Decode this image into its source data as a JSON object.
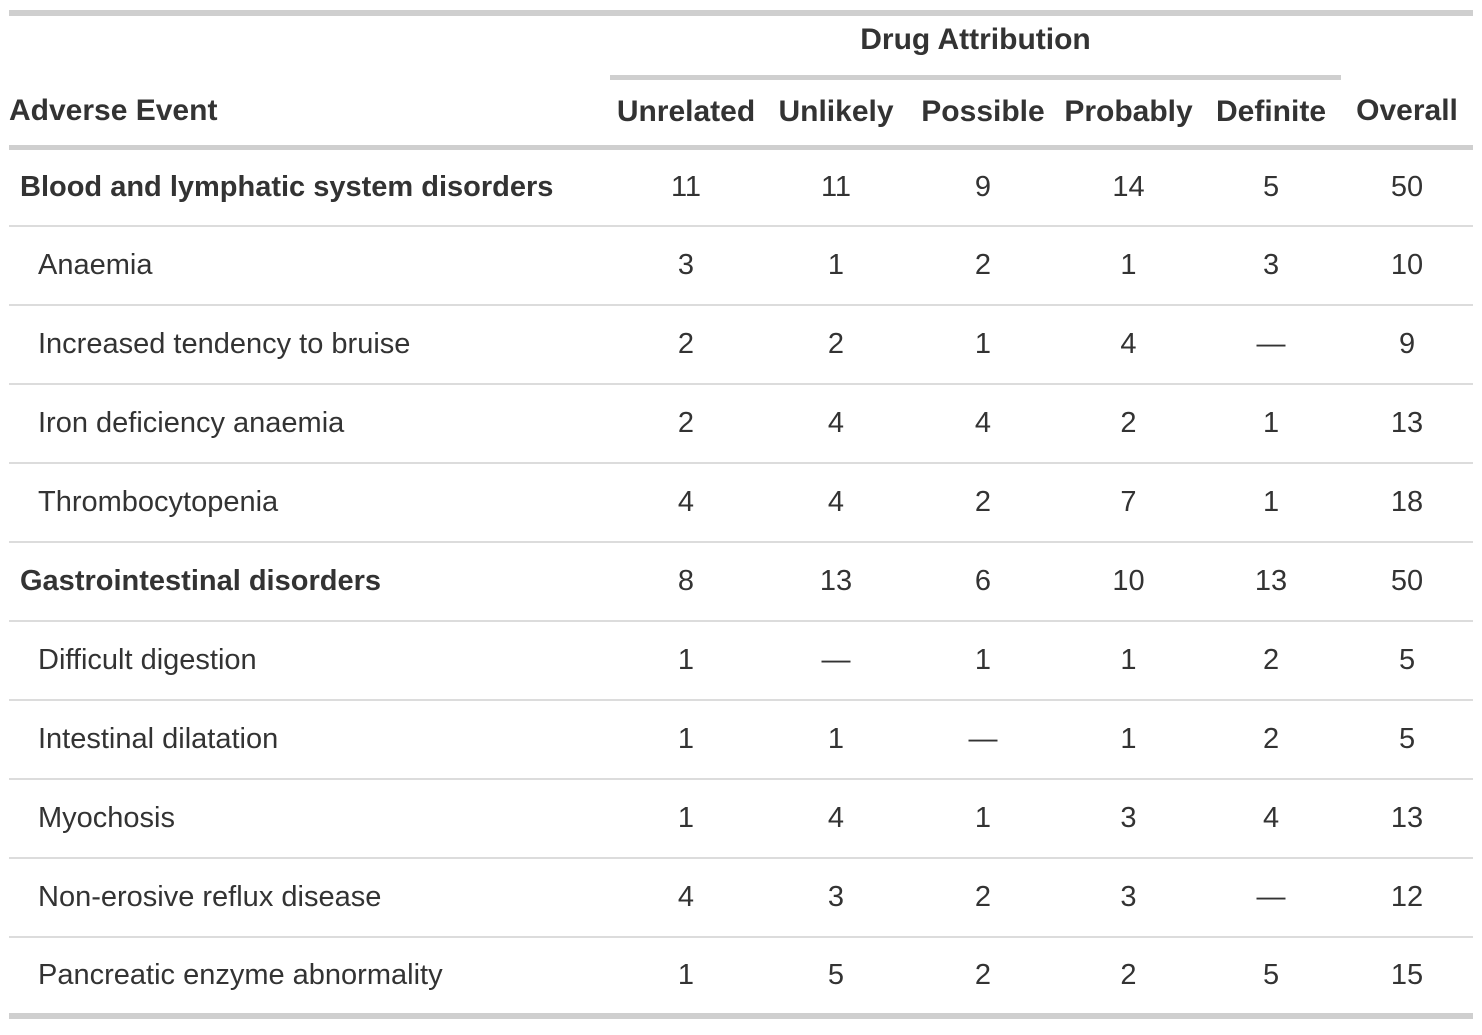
{
  "chart_data": {
    "type": "table",
    "title": "",
    "spanner": {
      "label": "Drug Attribution",
      "spans_columns": [
        "Unrelated",
        "Unlikely",
        "Possible",
        "Probably",
        "Definite"
      ]
    },
    "columns": [
      "Adverse Event",
      "Unrelated",
      "Unlikely",
      "Possible",
      "Probably",
      "Definite",
      "Overall"
    ],
    "missing_marker": "—",
    "rows": [
      {
        "label": "Blood and lymphatic system disorders",
        "level": "group",
        "values": [
          11,
          11,
          9,
          14,
          5,
          50
        ]
      },
      {
        "label": "Anaemia",
        "level": "sub",
        "values": [
          3,
          1,
          2,
          1,
          3,
          10
        ]
      },
      {
        "label": "Increased tendency to bruise",
        "level": "sub",
        "values": [
          2,
          2,
          1,
          4,
          "—",
          9
        ]
      },
      {
        "label": "Iron deficiency anaemia",
        "level": "sub",
        "values": [
          2,
          4,
          4,
          2,
          1,
          13
        ]
      },
      {
        "label": "Thrombocytopenia",
        "level": "sub",
        "values": [
          4,
          4,
          2,
          7,
          1,
          18
        ]
      },
      {
        "label": "Gastrointestinal disorders",
        "level": "group",
        "values": [
          8,
          13,
          6,
          10,
          13,
          50
        ]
      },
      {
        "label": "Difficult digestion",
        "level": "sub",
        "values": [
          1,
          "—",
          1,
          1,
          2,
          5
        ]
      },
      {
        "label": "Intestinal dilatation",
        "level": "sub",
        "values": [
          1,
          1,
          "—",
          1,
          2,
          5
        ]
      },
      {
        "label": "Myochosis",
        "level": "sub",
        "values": [
          1,
          4,
          1,
          3,
          4,
          13
        ]
      },
      {
        "label": "Non-erosive reflux disease",
        "level": "sub",
        "values": [
          4,
          3,
          2,
          3,
          "—",
          12
        ]
      },
      {
        "label": "Pancreatic enzyme abnormality",
        "level": "sub",
        "values": [
          1,
          5,
          2,
          2,
          5,
          15
        ]
      }
    ],
    "layout_hints": {
      "column_alignment": [
        "left",
        "center",
        "center",
        "center",
        "center",
        "center",
        "center"
      ],
      "grid": "horizontal-rules-only",
      "colors": {
        "text": "#333333",
        "heavy_border": "#cfcfcf",
        "light_border": "#dcdcdc",
        "background": "#ffffff"
      }
    }
  }
}
